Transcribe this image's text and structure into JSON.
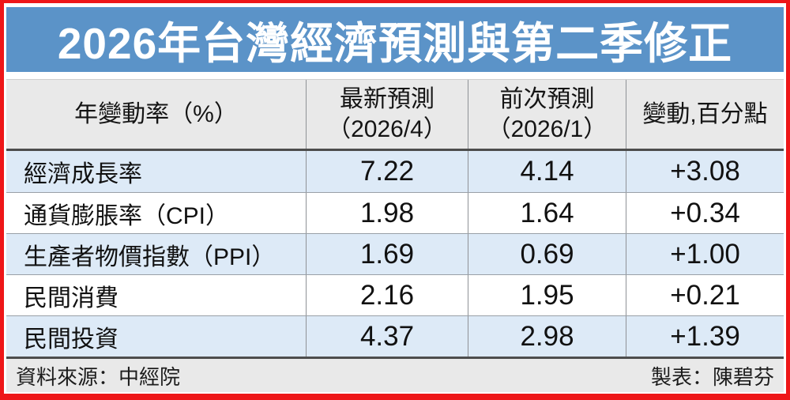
{
  "title": "2026年台灣經濟預測與第二季修正",
  "table": {
    "header": {
      "metric": "年變動率（%）",
      "latest_line1": "最新預測",
      "latest_line2": "（2026/4）",
      "previous_line1": "前次預測",
      "previous_line2": "（2026/1）",
      "change": "變動,百分點"
    },
    "rows": [
      {
        "label": "經濟成長率",
        "latest": "7.22",
        "previous": "4.14",
        "change": "+3.08"
      },
      {
        "label": "通貨膨脹率（CPI）",
        "latest": "1.98",
        "previous": "1.64",
        "change": "+0.34"
      },
      {
        "label": "生產者物價指數（PPI）",
        "latest": "1.69",
        "previous": "0.69",
        "change": "+1.00"
      },
      {
        "label": "民間消費",
        "latest": "2.16",
        "previous": "1.95",
        "change": "+0.21"
      },
      {
        "label": "民間投資",
        "latest": "4.37",
        "previous": "2.98",
        "change": "+1.39"
      }
    ]
  },
  "footer": {
    "source": "資料來源：中經院",
    "credit": "製表：陳碧芬"
  },
  "colors": {
    "banner_blue": "#5b93c8",
    "row_blue": "#ddeaf7",
    "header_gray": "#e9e9e9",
    "border_red": "#ee1618",
    "grid_gray": "#8f9296"
  },
  "chart_data": {
    "type": "table",
    "title": "2026年台灣經濟預測與第二季修正",
    "columns": [
      "年變動率（%）",
      "最新預測（2026/4）",
      "前次預測（2026/1）",
      "變動,百分點"
    ],
    "rows": [
      {
        "metric": "經濟成長率",
        "latest_forecast": 7.22,
        "previous_forecast": 4.14,
        "change_pp": 3.08
      },
      {
        "metric": "通貨膨脹率（CPI）",
        "latest_forecast": 1.98,
        "previous_forecast": 1.64,
        "change_pp": 0.34
      },
      {
        "metric": "生產者物價指數（PPI）",
        "latest_forecast": 1.69,
        "previous_forecast": 0.69,
        "change_pp": 1.0
      },
      {
        "metric": "民間消費",
        "latest_forecast": 2.16,
        "previous_forecast": 1.95,
        "change_pp": 0.21
      },
      {
        "metric": "民間投資",
        "latest_forecast": 4.37,
        "previous_forecast": 2.98,
        "change_pp": 1.39
      }
    ],
    "source": "中經院",
    "credit": "陳碧芬"
  }
}
